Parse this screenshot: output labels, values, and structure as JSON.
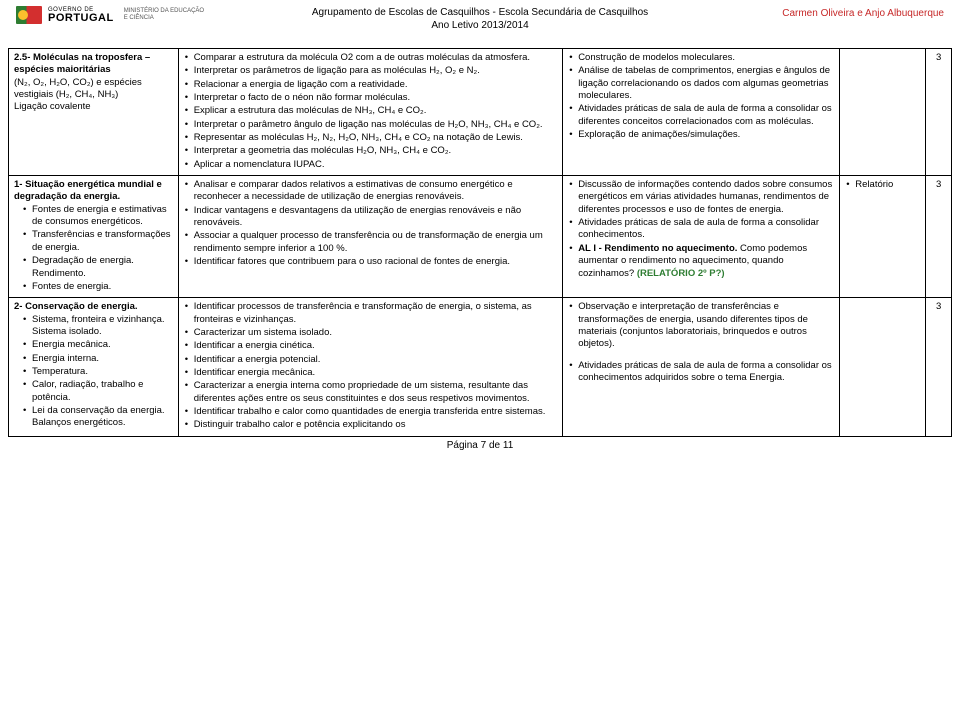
{
  "header": {
    "gov_line1": "GOVERNO DE",
    "gov_line2": "PORTUGAL",
    "ministerio_line1": "MINISTÉRIO DA EDUCAÇÃO",
    "ministerio_line2": "E CIÊNCIA",
    "center_line1": "Agrupamento de Escolas de Casquilhos - Escola Secundária de Casquilhos",
    "center_line2": "Ano Letivo 2013/2014",
    "right_name": "Carmen Oliveira e Anjo Albuquerque"
  },
  "rows": [
    {
      "col1_title": "2.5- Moléculas na troposfera – espécies maioritárias",
      "col1_rest": "(N₂, O₂, H₂O, CO₂) e espécies vestigiais (H₂, CH₄, NH₃)\nLigação covalente",
      "col2": [
        "Comparar a estrutura da molécula O2 com a de outras moléculas da atmosfera.",
        "Interpretar os parâmetros de ligação para as moléculas H₂, O₂ e N₂.",
        "Relacionar a energia de ligação com a reatividade.",
        "Interpretar o facto de o néon não formar moléculas.",
        "Explicar a estrutura das moléculas de NH₃, CH₄ e CO₂.",
        "Interpretar o parâmetro ângulo de ligação nas moléculas de H₂O, NH₃, CH₄ e CO₂.",
        "Representar as moléculas H₂, N₂, H₂O, NH₃, CH₄ e CO₂ na notação de Lewis.",
        "Interpretar a geometria das moléculas H₂O, NH₃, CH₄ e CO₂.",
        "Aplicar a nomenclatura IUPAC."
      ],
      "col3": [
        "Construção de modelos moleculares.",
        "Análise de tabelas de comprimentos, energias e ângulos de ligação correlacionando os dados com algumas geometrias moleculares.",
        "Atividades práticas de sala de aula de forma a consolidar os diferentes conceitos correlacionados com as moléculas.",
        "Exploração de animações/simulações."
      ],
      "col4": "",
      "col5": "3"
    },
    {
      "col1_title": "1- Situação energética mundial e degradação da energia.",
      "col1_list": [
        "Fontes de energia e estimativas de consumos energéticos.",
        "Transferências e transformações de energia.",
        "Degradação de energia. Rendimento.",
        "Fontes de energia."
      ],
      "col2": [
        "Analisar e comparar dados relativos a estimativas de consumo energético e reconhecer a necessidade de utilização de energias renováveis.",
        "Indicar vantagens e desvantagens da utilização de energias renováveis e não renováveis.",
        "Associar a qualquer processo de transferência ou de transformação de energia um rendimento sempre inferior a 100 %.",
        "Identificar fatores que contribuem para o uso racional de fontes de energia."
      ],
      "col3_items": [
        "Discussão de informações contendo dados sobre consumos energéticos em várias atividades humanas, rendimentos de diferentes processos e uso de fontes de energia.",
        "Atividades práticas de sala de aula de forma a consolidar conhecimentos."
      ],
      "col3_al": "AL I - Rendimento no aquecimento.",
      "col3_al_rest": " Como podemos aumentar o rendimento no aquecimento, quando cozinhamos? ",
      "col3_green": "(RELATÓRIO 2º P?)",
      "col4": "Relatório",
      "col5": "3"
    },
    {
      "col1_title": "2- Conservação de energia.",
      "col1_list": [
        "Sistema, fronteira e vizinhança. Sistema isolado.",
        "Energia mecânica.",
        "Energia interna.",
        "Temperatura.",
        "Calor, radiação, trabalho e potência.",
        "Lei da conservação da energia. Balanços energéticos."
      ],
      "col2": [
        "Identificar processos de transferência e transformação de energia, o sistema, as fronteiras e vizinhanças.",
        "Caracterizar um sistema isolado.",
        "Identificar a energia cinética.",
        "Identificar a energia potencial.",
        "Identificar energia mecânica.",
        "Caracterizar a energia interna como propriedade de um sistema, resultante das diferentes ações entre os seus constituintes e dos seus respetivos movimentos.",
        "Identificar trabalho e calor como quantidades de energia transferida entre sistemas.",
        "Distinguir trabalho calor e potência explicitando os"
      ],
      "col3_items": [
        "Observação e interpretação de transferências e transformações de energia, usando diferentes tipos de materiais (conjuntos laboratoriais, brinquedos e outros objetos)."
      ],
      "col3_extra": "Atividades práticas de sala de aula de forma a consolidar os conhecimentos adquiridos sobre o tema Energia.",
      "col4": "",
      "col5": "3"
    }
  ],
  "footer": "Página 7 de 11"
}
